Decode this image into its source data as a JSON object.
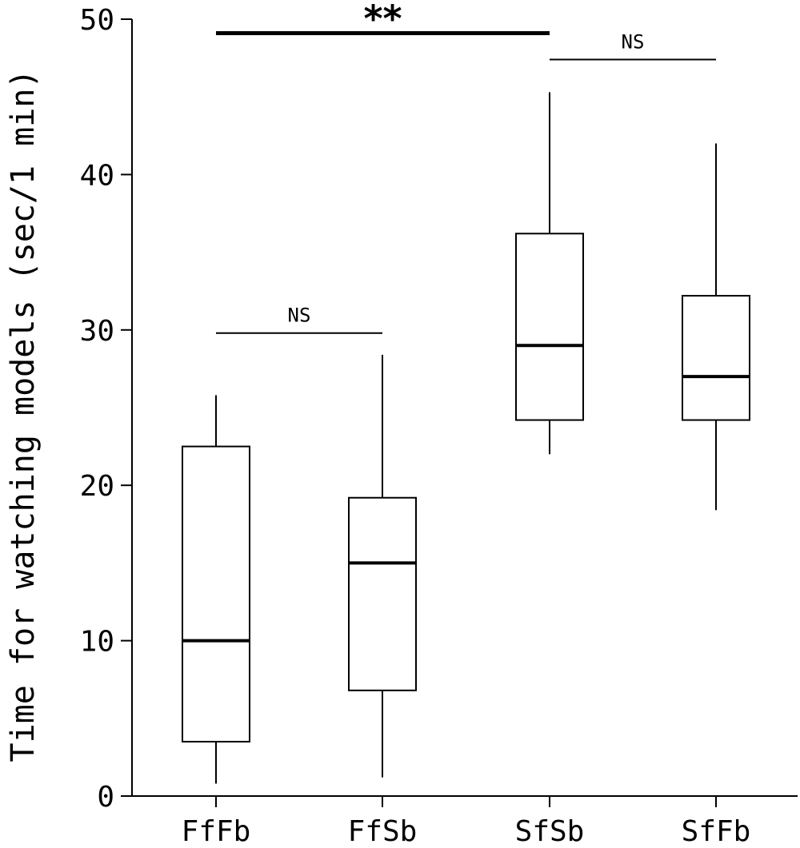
{
  "chart_data": {
    "type": "box",
    "title": "",
    "xlabel": "",
    "ylabel": "Time for watching models (sec/1 min)",
    "ylim": [
      0,
      50
    ],
    "yticks": [
      "0",
      "10",
      "20",
      "30",
      "40",
      "50"
    ],
    "categories": [
      "FfFb",
      "FfSb",
      "SfSb",
      "SfFb"
    ],
    "boxes": [
      {
        "category": "FfFb",
        "whisker_low": 0.8,
        "q1": 3.5,
        "median": 10.0,
        "q3": 22.5,
        "whisker_high": 25.8
      },
      {
        "category": "FfSb",
        "whisker_low": 1.2,
        "q1": 6.8,
        "median": 15.0,
        "q3": 19.2,
        "whisker_high": 28.4
      },
      {
        "category": "SfSb",
        "whisker_low": 22.0,
        "q1": 24.2,
        "median": 29.0,
        "q3": 36.2,
        "whisker_high": 45.3
      },
      {
        "category": "SfFb",
        "whisker_low": 18.4,
        "q1": 24.2,
        "median": 27.0,
        "q3": 32.2,
        "whisker_high": 42.0
      }
    ],
    "significance": [
      {
        "from": "FfFb",
        "to": "FfSb",
        "y": 29.8,
        "label": "NS",
        "style": "thin"
      },
      {
        "from": "FfFb",
        "to": "SfSb",
        "y": 49.1,
        "label": "**",
        "style": "thick"
      },
      {
        "from": "SfSb",
        "to": "SfFb",
        "y": 47.4,
        "label": "NS",
        "style": "thin"
      }
    ],
    "grid": false,
    "colors": {
      "axis": "#000000",
      "box_fill": "#ffffff",
      "box_stroke": "#000000"
    }
  }
}
